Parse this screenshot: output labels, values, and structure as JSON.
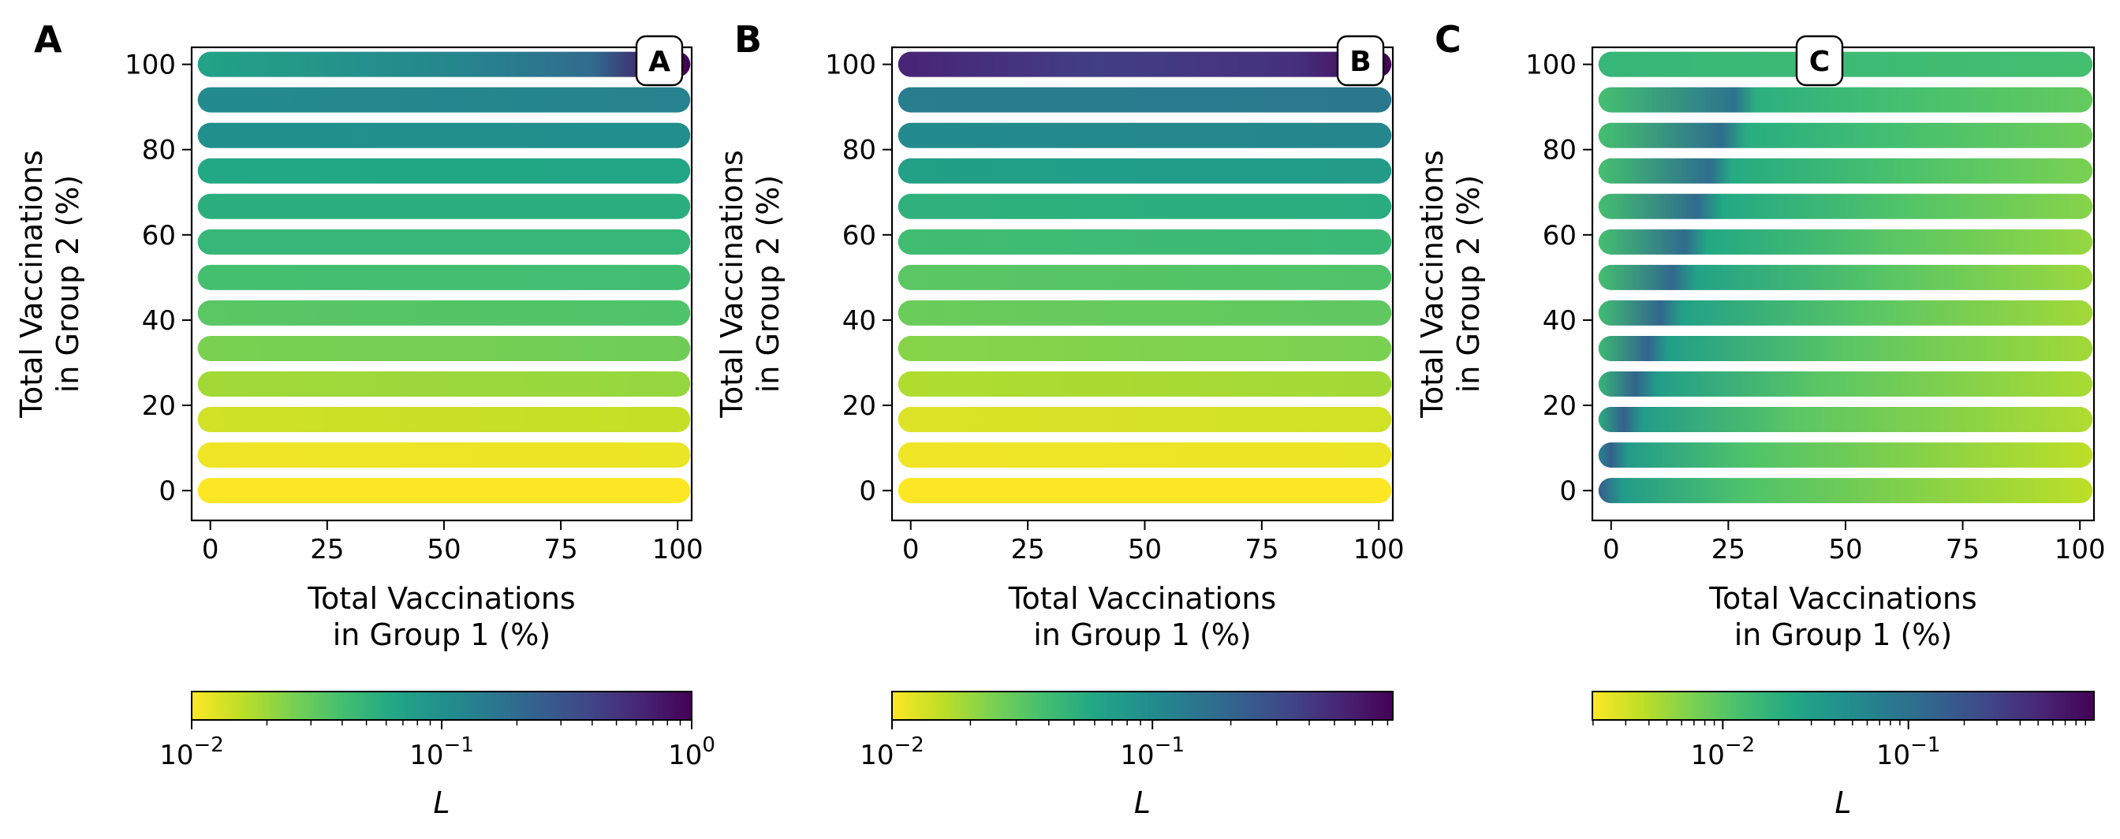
{
  "chart_data": [
    {
      "type": "scatter",
      "panel_letter": "A",
      "badge": "A",
      "badge_position": "top-right",
      "xlabel": [
        "Total Vaccinations",
        "in Group 1 (%)"
      ],
      "ylabel": [
        "Total Vaccinations",
        "in Group 2 (%)"
      ],
      "xlim": [
        -4,
        103
      ],
      "ylim": [
        -7,
        104
      ],
      "xticks": [
        0,
        25,
        50,
        75,
        100
      ],
      "yticks": [
        0,
        20,
        40,
        60,
        80,
        100
      ],
      "grid": false,
      "rows_y": [
        0,
        8.33,
        16.67,
        25,
        33.33,
        41.67,
        50,
        58.33,
        66.67,
        75,
        83.33,
        91.67,
        100
      ],
      "x_points": [
        0,
        100
      ],
      "row_color_stops": [
        [
          [
            0,
            1.0
          ],
          [
            100,
            1.0
          ]
        ],
        [
          [
            0,
            0.98
          ],
          [
            100,
            0.97
          ]
        ],
        [
          [
            0,
            0.93
          ],
          [
            100,
            0.91
          ]
        ],
        [
          [
            0,
            0.86
          ],
          [
            100,
            0.84
          ]
        ],
        [
          [
            0,
            0.8
          ],
          [
            100,
            0.78
          ]
        ],
        [
          [
            0,
            0.74
          ],
          [
            100,
            0.72
          ]
        ],
        [
          [
            0,
            0.7
          ],
          [
            100,
            0.69
          ]
        ],
        [
          [
            0,
            0.66
          ],
          [
            100,
            0.66
          ]
        ],
        [
          [
            0,
            0.63
          ],
          [
            100,
            0.63
          ]
        ],
        [
          [
            0,
            0.6
          ],
          [
            100,
            0.59
          ]
        ],
        [
          [
            0,
            0.5
          ],
          [
            100,
            0.49
          ]
        ],
        [
          [
            0,
            0.48
          ],
          [
            100,
            0.44
          ]
        ],
        [
          [
            0,
            0.58
          ],
          [
            55,
            0.45
          ],
          [
            80,
            0.35
          ],
          [
            94,
            0.05
          ],
          [
            100,
            0.0
          ]
        ]
      ],
      "colorbar": {
        "label": "L",
        "scale": "log",
        "reversed": true,
        "ticks": [
          {
            "base": "10",
            "exp": "−2",
            "frac": 0
          },
          {
            "base": "10",
            "exp": "−1",
            "frac": 0.5
          },
          {
            "base": "10",
            "exp": "0",
            "frac": 1
          }
        ],
        "minor_decades": [
          [
            0,
            0.5
          ],
          [
            0.5,
            1.0
          ]
        ]
      }
    },
    {
      "type": "scatter",
      "panel_letter": "B",
      "badge": "B",
      "badge_position": "top-right",
      "xlabel": [
        "Total Vaccinations",
        "in Group 1 (%)"
      ],
      "ylabel": [
        "Total Vaccinations",
        "in Group 2 (%)"
      ],
      "xlim": [
        -4,
        103
      ],
      "ylim": [
        -7,
        104
      ],
      "xticks": [
        0,
        25,
        50,
        75,
        100
      ],
      "yticks": [
        0,
        20,
        40,
        60,
        80,
        100
      ],
      "grid": false,
      "rows_y": [
        0,
        8.33,
        16.67,
        25,
        33.33,
        41.67,
        50,
        58.33,
        66.67,
        75,
        83.33,
        91.67,
        100
      ],
      "x_points": [
        0,
        100
      ],
      "row_color_stops": [
        [
          [
            0,
            1.0
          ],
          [
            100,
            1.0
          ]
        ],
        [
          [
            0,
            0.98
          ],
          [
            100,
            0.97
          ]
        ],
        [
          [
            0,
            0.95
          ],
          [
            100,
            0.93
          ]
        ],
        [
          [
            0,
            0.88
          ],
          [
            100,
            0.86
          ]
        ],
        [
          [
            0,
            0.82
          ],
          [
            100,
            0.8
          ]
        ],
        [
          [
            0,
            0.77
          ],
          [
            100,
            0.75
          ]
        ],
        [
          [
            0,
            0.74
          ],
          [
            100,
            0.72
          ]
        ],
        [
          [
            0,
            0.69
          ],
          [
            100,
            0.67
          ]
        ],
        [
          [
            0,
            0.64
          ],
          [
            100,
            0.62
          ]
        ],
        [
          [
            0,
            0.57
          ],
          [
            100,
            0.55
          ]
        ],
        [
          [
            0,
            0.48
          ],
          [
            100,
            0.46
          ]
        ],
        [
          [
            0,
            0.42
          ],
          [
            100,
            0.4
          ]
        ],
        [
          [
            0,
            0.1
          ],
          [
            40,
            0.18
          ],
          [
            80,
            0.14
          ],
          [
            94,
            0.04
          ],
          [
            100,
            0.0
          ]
        ]
      ],
      "colorbar": {
        "label": "L",
        "scale": "log",
        "reversed": true,
        "ticks": [
          {
            "base": "10",
            "exp": "−2",
            "frac": 0
          },
          {
            "base": "10",
            "exp": "−1",
            "frac": 0.52
          }
        ],
        "minor_decades": [
          [
            0,
            0.52
          ],
          [
            0.52,
            1.04
          ]
        ]
      }
    },
    {
      "type": "scatter",
      "panel_letter": "C",
      "badge": "C",
      "badge_position": "top-center",
      "xlabel": [
        "Total Vaccinations",
        "in Group 1 (%)"
      ],
      "ylabel": [
        "Total Vaccinations",
        "in Group 2 (%)"
      ],
      "xlim": [
        -4,
        103
      ],
      "ylim": [
        -7,
        104
      ],
      "xticks": [
        0,
        25,
        50,
        75,
        100
      ],
      "yticks": [
        0,
        20,
        40,
        60,
        80,
        100
      ],
      "grid": false,
      "rows_y": [
        0,
        8.33,
        16.67,
        25,
        33.33,
        41.67,
        50,
        58.33,
        66.67,
        75,
        83.33,
        91.67,
        100
      ],
      "x_points": [
        0,
        100
      ],
      "row_color_stops": [
        [
          [
            0,
            0.3
          ],
          [
            5,
            0.55
          ],
          [
            30,
            0.72
          ],
          [
            100,
            0.9
          ]
        ],
        [
          [
            0,
            0.45
          ],
          [
            2.5,
            0.3
          ],
          [
            6,
            0.55
          ],
          [
            30,
            0.72
          ],
          [
            100,
            0.9
          ]
        ],
        [
          [
            0,
            0.62
          ],
          [
            5,
            0.3
          ],
          [
            9,
            0.55
          ],
          [
            40,
            0.74
          ],
          [
            100,
            0.88
          ]
        ],
        [
          [
            0,
            0.66
          ],
          [
            7.5,
            0.32
          ],
          [
            12,
            0.56
          ],
          [
            45,
            0.74
          ],
          [
            100,
            0.87
          ]
        ],
        [
          [
            0,
            0.68
          ],
          [
            10,
            0.32
          ],
          [
            14,
            0.56
          ],
          [
            50,
            0.74
          ],
          [
            100,
            0.86
          ]
        ],
        [
          [
            0,
            0.69
          ],
          [
            12.5,
            0.33
          ],
          [
            17,
            0.57
          ],
          [
            55,
            0.74
          ],
          [
            100,
            0.86
          ]
        ],
        [
          [
            0,
            0.7
          ],
          [
            15,
            0.34
          ],
          [
            20,
            0.58
          ],
          [
            60,
            0.74
          ],
          [
            100,
            0.85
          ]
        ],
        [
          [
            0,
            0.7
          ],
          [
            17.5,
            0.35
          ],
          [
            22,
            0.6
          ],
          [
            60,
            0.74
          ],
          [
            100,
            0.84
          ]
        ],
        [
          [
            0,
            0.7
          ],
          [
            20,
            0.35
          ],
          [
            25,
            0.6
          ],
          [
            60,
            0.72
          ],
          [
            100,
            0.82
          ]
        ],
        [
          [
            0,
            0.7
          ],
          [
            22.5,
            0.36
          ],
          [
            27,
            0.61
          ],
          [
            60,
            0.71
          ],
          [
            100,
            0.8
          ]
        ],
        [
          [
            0,
            0.7
          ],
          [
            25,
            0.36
          ],
          [
            30,
            0.62
          ],
          [
            60,
            0.7
          ],
          [
            100,
            0.78
          ]
        ],
        [
          [
            0,
            0.7
          ],
          [
            27.5,
            0.38
          ],
          [
            32,
            0.63
          ],
          [
            60,
            0.7
          ],
          [
            100,
            0.76
          ]
        ],
        [
          [
            0,
            0.66
          ],
          [
            100,
            0.7
          ]
        ]
      ],
      "colorbar": {
        "label": "L",
        "scale": "log",
        "reversed": true,
        "ticks": [
          {
            "base": "10",
            "exp": "−2",
            "frac": 0.26
          },
          {
            "base": "10",
            "exp": "−1",
            "frac": 0.63
          }
        ],
        "minor_decades": [
          [
            -0.11,
            0.26
          ],
          [
            0.26,
            0.63
          ],
          [
            0.63,
            1.0
          ]
        ]
      }
    }
  ]
}
